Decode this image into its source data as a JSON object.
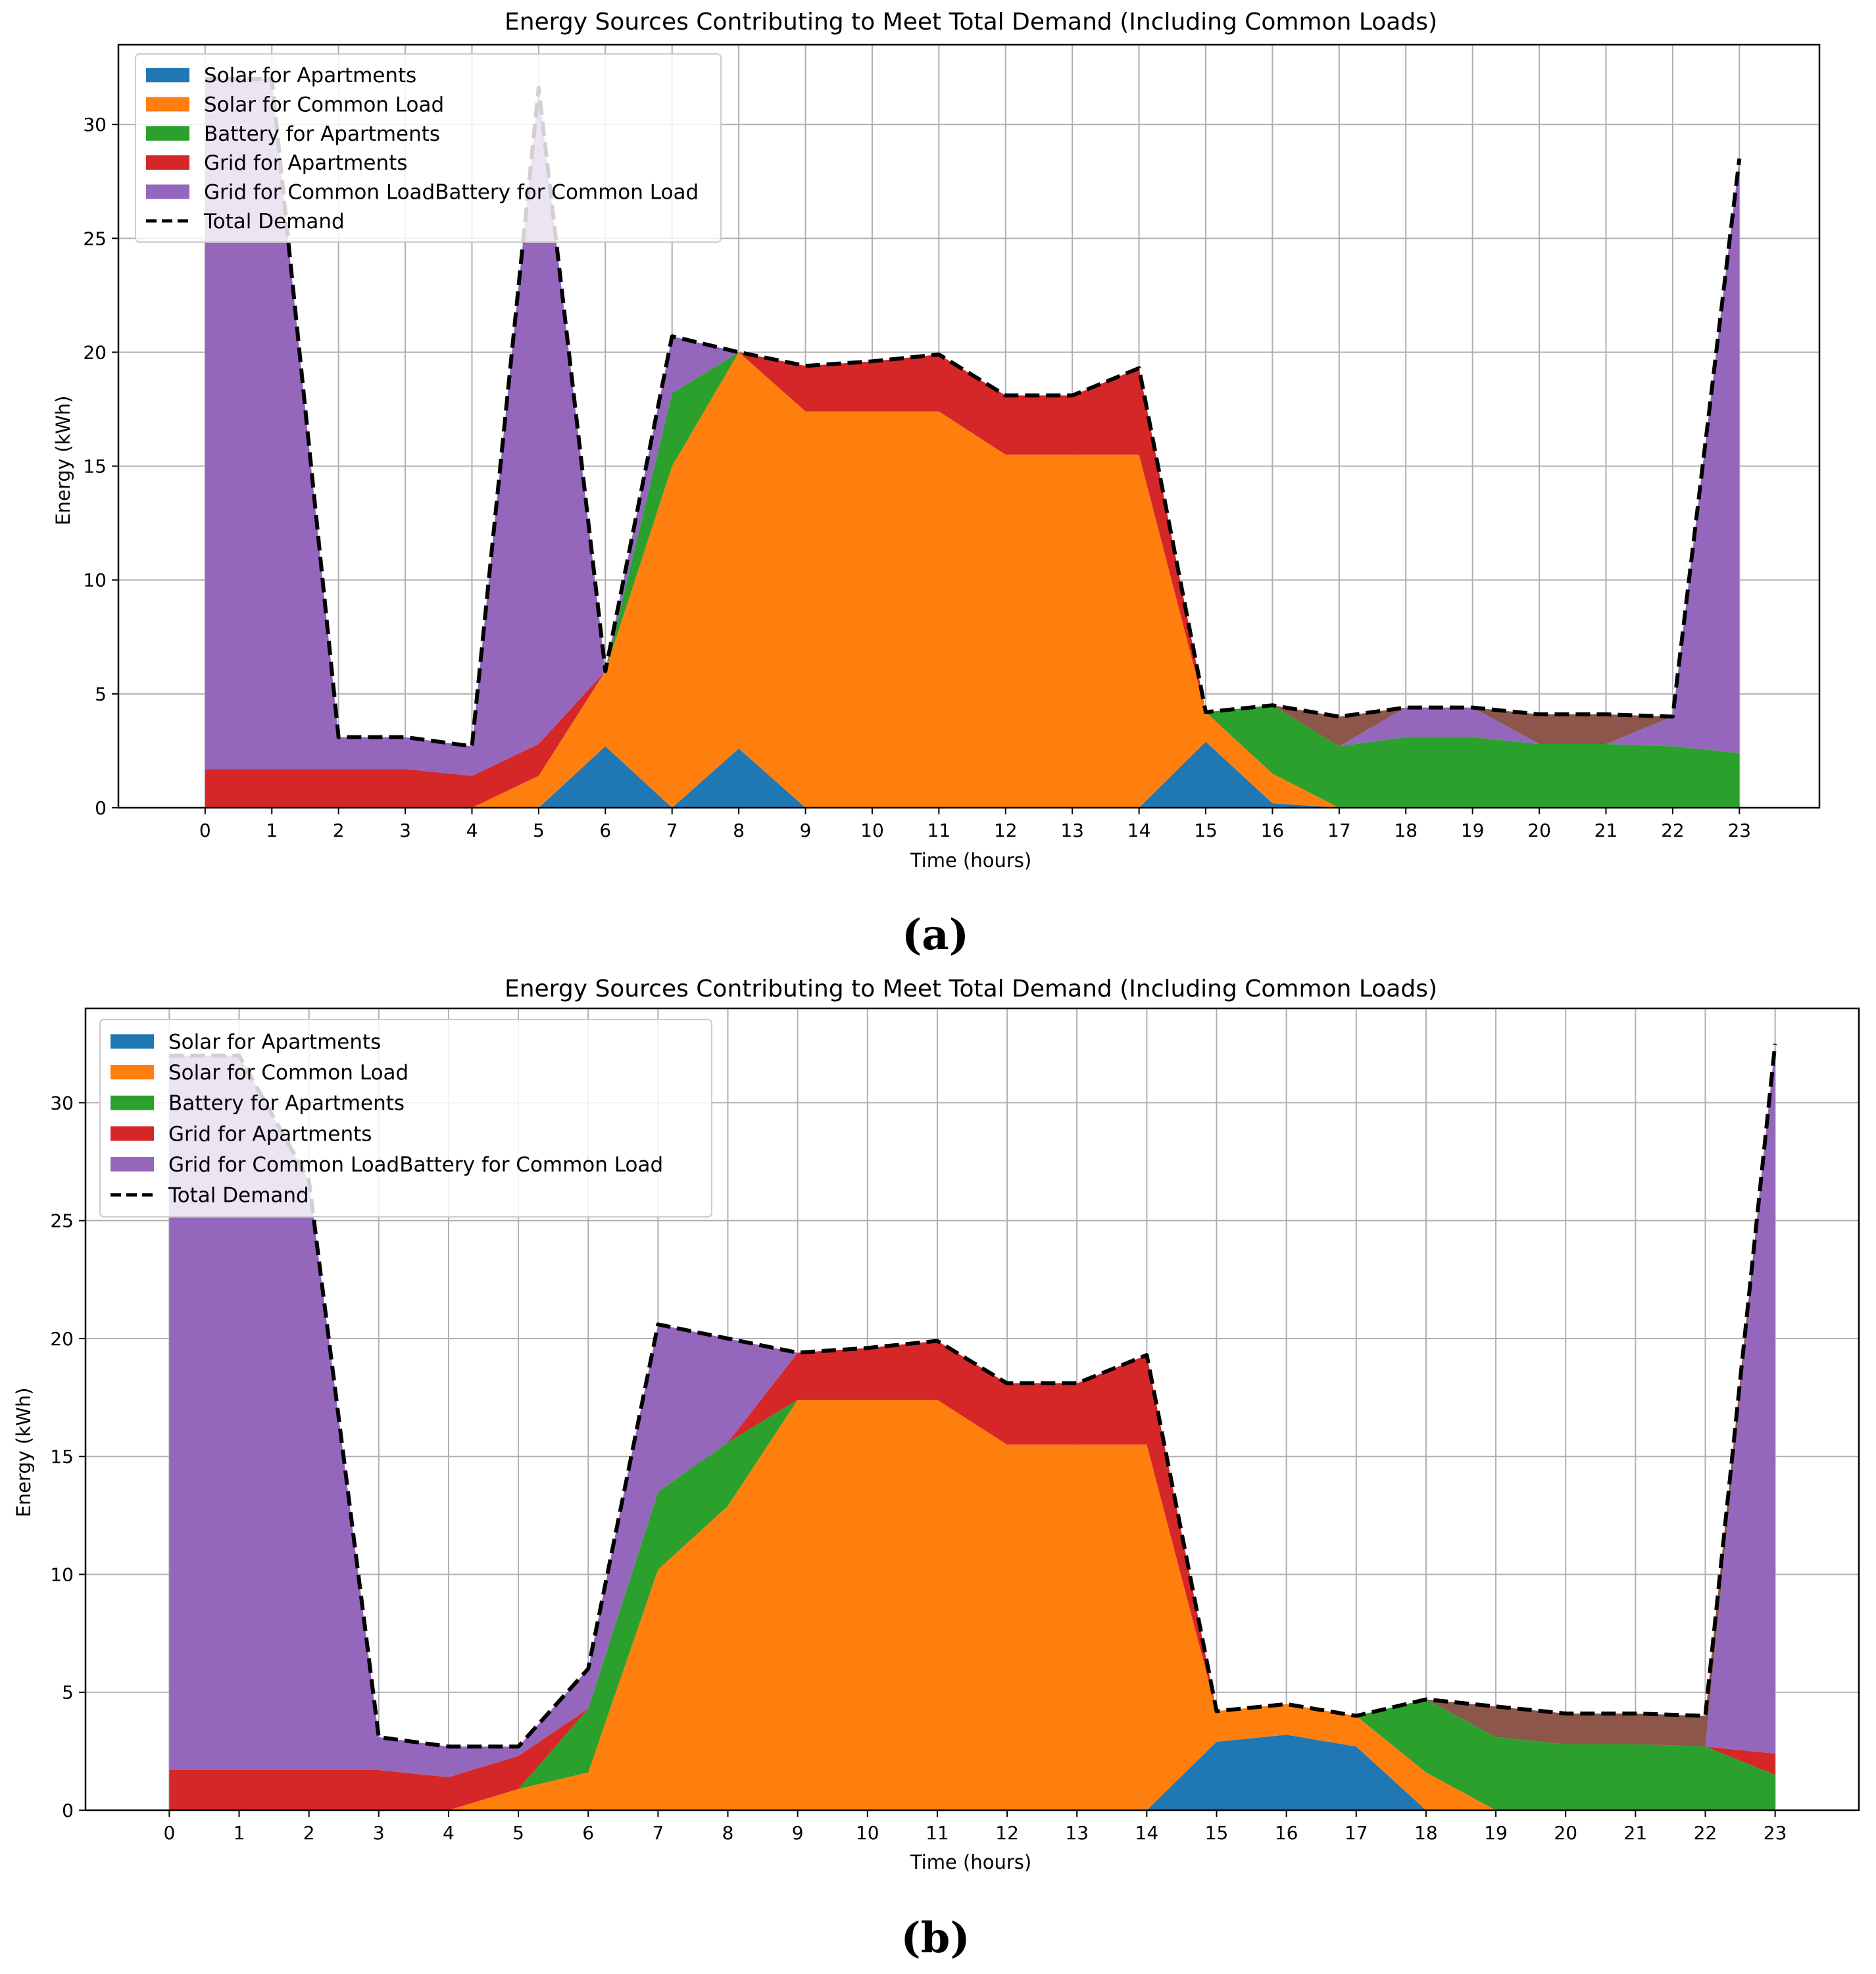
{
  "chart_data": [
    {
      "type": "area",
      "stacked": true,
      "panel_label": "(a)",
      "title": "Energy Sources Contributing to Meet Total Demand (Including Common Loads)",
      "xlabel": "Time (hours)",
      "ylabel": "Energy (kWh)",
      "xlim": [
        -1.3,
        24.2
      ],
      "ylim": [
        0,
        33.5
      ],
      "xticks": [
        0,
        1,
        2,
        3,
        4,
        5,
        6,
        7,
        8,
        9,
        10,
        11,
        12,
        13,
        14,
        15,
        16,
        17,
        18,
        19,
        20,
        21,
        22,
        23
      ],
      "yticks": [
        0,
        5,
        10,
        15,
        20,
        25,
        30
      ],
      "grid": true,
      "legend_position": "top-left",
      "x": [
        0,
        1,
        2,
        3,
        4,
        5,
        6,
        7,
        8,
        9,
        10,
        11,
        12,
        13,
        14,
        15,
        16,
        17,
        18,
        19,
        20,
        21,
        22,
        23
      ],
      "series": [
        {
          "name": "Solar for Apartments",
          "color": "#1f77b4",
          "values": [
            0,
            0,
            0,
            0,
            0,
            0,
            2.7,
            0,
            2.6,
            0,
            0,
            0,
            0,
            0,
            0,
            2.9,
            0.2,
            0,
            0,
            0,
            0,
            0,
            0,
            0
          ]
        },
        {
          "name": "Solar for Common Load",
          "color": "#ff7f0e",
          "values": [
            0,
            0,
            0,
            0,
            0,
            1.4,
            3.3,
            15.0,
            17.4,
            17.4,
            17.4,
            17.4,
            15.5,
            15.5,
            15.5,
            1.3,
            1.3,
            0,
            0,
            0,
            0,
            0,
            0,
            0
          ]
        },
        {
          "name": "Battery for Apartments",
          "color": "#2ca02c",
          "values": [
            0,
            0,
            0,
            0,
            0,
            0,
            0,
            3.2,
            0,
            0,
            0,
            0,
            0,
            0,
            0,
            0,
            3.0,
            2.7,
            3.1,
            3.1,
            2.8,
            2.8,
            2.7,
            2.4
          ]
        },
        {
          "name": "Grid for Apartments",
          "color": "#d62728",
          "values": [
            1.7,
            1.7,
            1.7,
            1.7,
            1.4,
            1.4,
            0,
            0,
            0,
            2.0,
            2.2,
            2.5,
            2.6,
            2.6,
            3.8,
            0,
            0,
            0,
            0,
            0,
            0,
            0,
            0,
            0
          ]
        },
        {
          "name": "Grid for Common Load",
          "color": "#9467bd",
          "values": [
            30.3,
            30.3,
            1.4,
            1.4,
            1.3,
            28.8,
            0,
            2.5,
            0,
            0,
            0,
            0,
            0,
            0,
            0,
            0,
            0,
            0,
            1.3,
            1.3,
            0,
            0,
            1.3,
            26.1
          ]
        },
        {
          "name": "Battery for Common Load",
          "color": "#8c564b",
          "values": [
            0,
            0,
            0,
            0,
            0,
            0,
            0,
            0,
            0,
            0,
            0,
            0,
            0,
            0,
            0,
            0,
            0,
            1.3,
            0,
            0,
            1.3,
            1.3,
            0,
            0
          ]
        }
      ],
      "total_demand": {
        "name": "Total Demand",
        "color": "#000000",
        "values": [
          32.0,
          32.0,
          3.1,
          3.1,
          2.7,
          31.6,
          6.0,
          20.7,
          20.0,
          19.4,
          19.6,
          19.9,
          18.1,
          18.1,
          19.3,
          4.2,
          4.5,
          4.0,
          4.4,
          4.4,
          4.1,
          4.1,
          4.0,
          28.5
        ]
      },
      "legend_entries": [
        {
          "label": "Solar for Apartments",
          "color": "#1f77b4",
          "style": "patch"
        },
        {
          "label": "Solar for Common Load",
          "color": "#ff7f0e",
          "style": "patch"
        },
        {
          "label": "Battery for Apartments",
          "color": "#2ca02c",
          "style": "patch"
        },
        {
          "label": "Grid for Apartments",
          "color": "#d62728",
          "style": "patch"
        },
        {
          "label": "Grid for Common LoadBattery for Common Load",
          "color": "#9467bd",
          "style": "patch"
        },
        {
          "label": "Total Demand",
          "color": "#000000",
          "style": "dashed"
        }
      ]
    },
    {
      "type": "area",
      "stacked": true,
      "panel_label": "(b)",
      "title": "Energy Sources Contributing to Meet Total Demand (Including Common Loads)",
      "xlabel": "Time (hours)",
      "ylabel": "Energy (kWh)",
      "xlim": [
        -1.2,
        24.2
      ],
      "ylim": [
        0,
        34.0
      ],
      "xticks": [
        0,
        1,
        2,
        3,
        4,
        5,
        6,
        7,
        8,
        9,
        10,
        11,
        12,
        13,
        14,
        15,
        16,
        17,
        18,
        19,
        20,
        21,
        22,
        23
      ],
      "yticks": [
        0,
        5,
        10,
        15,
        20,
        25,
        30
      ],
      "grid": true,
      "legend_position": "top-left",
      "x": [
        0,
        1,
        2,
        3,
        4,
        5,
        6,
        7,
        8,
        9,
        10,
        11,
        12,
        13,
        14,
        15,
        16,
        17,
        18,
        19,
        20,
        21,
        22,
        23
      ],
      "series": [
        {
          "name": "Solar for Apartments",
          "color": "#1f77b4",
          "values": [
            0,
            0,
            0,
            0,
            0,
            0,
            0,
            0,
            0,
            0,
            0,
            0,
            0,
            0,
            0,
            2.9,
            3.2,
            2.7,
            0,
            0,
            0,
            0,
            0,
            0
          ]
        },
        {
          "name": "Solar for Common Load",
          "color": "#ff7f0e",
          "values": [
            0,
            0,
            0,
            0,
            0,
            0.9,
            1.6,
            10.2,
            12.9,
            17.4,
            17.4,
            17.4,
            15.5,
            15.5,
            15.5,
            1.3,
            1.3,
            1.3,
            1.6,
            0,
            0,
            0,
            0,
            0
          ]
        },
        {
          "name": "Battery for Apartments",
          "color": "#2ca02c",
          "values": [
            0,
            0,
            0,
            0,
            0,
            0,
            2.7,
            3.3,
            2.7,
            0,
            0,
            0,
            0,
            0,
            0,
            0,
            0,
            0,
            3.1,
            3.1,
            2.8,
            2.8,
            2.7,
            1.5
          ]
        },
        {
          "name": "Grid for Apartments",
          "color": "#d62728",
          "values": [
            1.7,
            1.7,
            1.7,
            1.7,
            1.4,
            1.4,
            0,
            0,
            0,
            2.0,
            2.2,
            2.5,
            2.6,
            2.6,
            3.8,
            0,
            0,
            0,
            0,
            0,
            0,
            0,
            0,
            0.9
          ]
        },
        {
          "name": "Grid for Common Load",
          "color": "#9467bd",
          "values": [
            30.3,
            30.3,
            25.0,
            1.4,
            1.3,
            0.4,
            1.7,
            7.1,
            4.4,
            0,
            0,
            0,
            0,
            0,
            0,
            0,
            0,
            0,
            0,
            0,
            0,
            0,
            0,
            30.1
          ]
        },
        {
          "name": "Battery for Common Load",
          "color": "#8c564b",
          "values": [
            0,
            0,
            0,
            0,
            0,
            0,
            0,
            0,
            0,
            0,
            0,
            0,
            0,
            0,
            0,
            0,
            0,
            0,
            0,
            1.3,
            1.3,
            1.3,
            1.3,
            0
          ]
        }
      ],
      "total_demand": {
        "name": "Total Demand",
        "color": "#000000",
        "values": [
          32.0,
          32.0,
          26.7,
          3.1,
          2.7,
          2.7,
          6.0,
          20.6,
          20.0,
          19.4,
          19.6,
          19.9,
          18.1,
          18.1,
          19.3,
          4.2,
          4.5,
          4.0,
          4.7,
          4.4,
          4.1,
          4.1,
          4.0,
          32.5
        ]
      },
      "legend_entries": [
        {
          "label": "Solar for Apartments",
          "color": "#1f77b4",
          "style": "patch"
        },
        {
          "label": "Solar for Common Load",
          "color": "#ff7f0e",
          "style": "patch"
        },
        {
          "label": "Battery for Apartments",
          "color": "#2ca02c",
          "style": "patch"
        },
        {
          "label": "Grid for Apartments",
          "color": "#d62728",
          "style": "patch"
        },
        {
          "label": "Grid for Common LoadBattery for Common Load",
          "color": "#9467bd",
          "style": "patch"
        },
        {
          "label": "Total Demand",
          "color": "#000000",
          "style": "dashed"
        }
      ]
    }
  ]
}
